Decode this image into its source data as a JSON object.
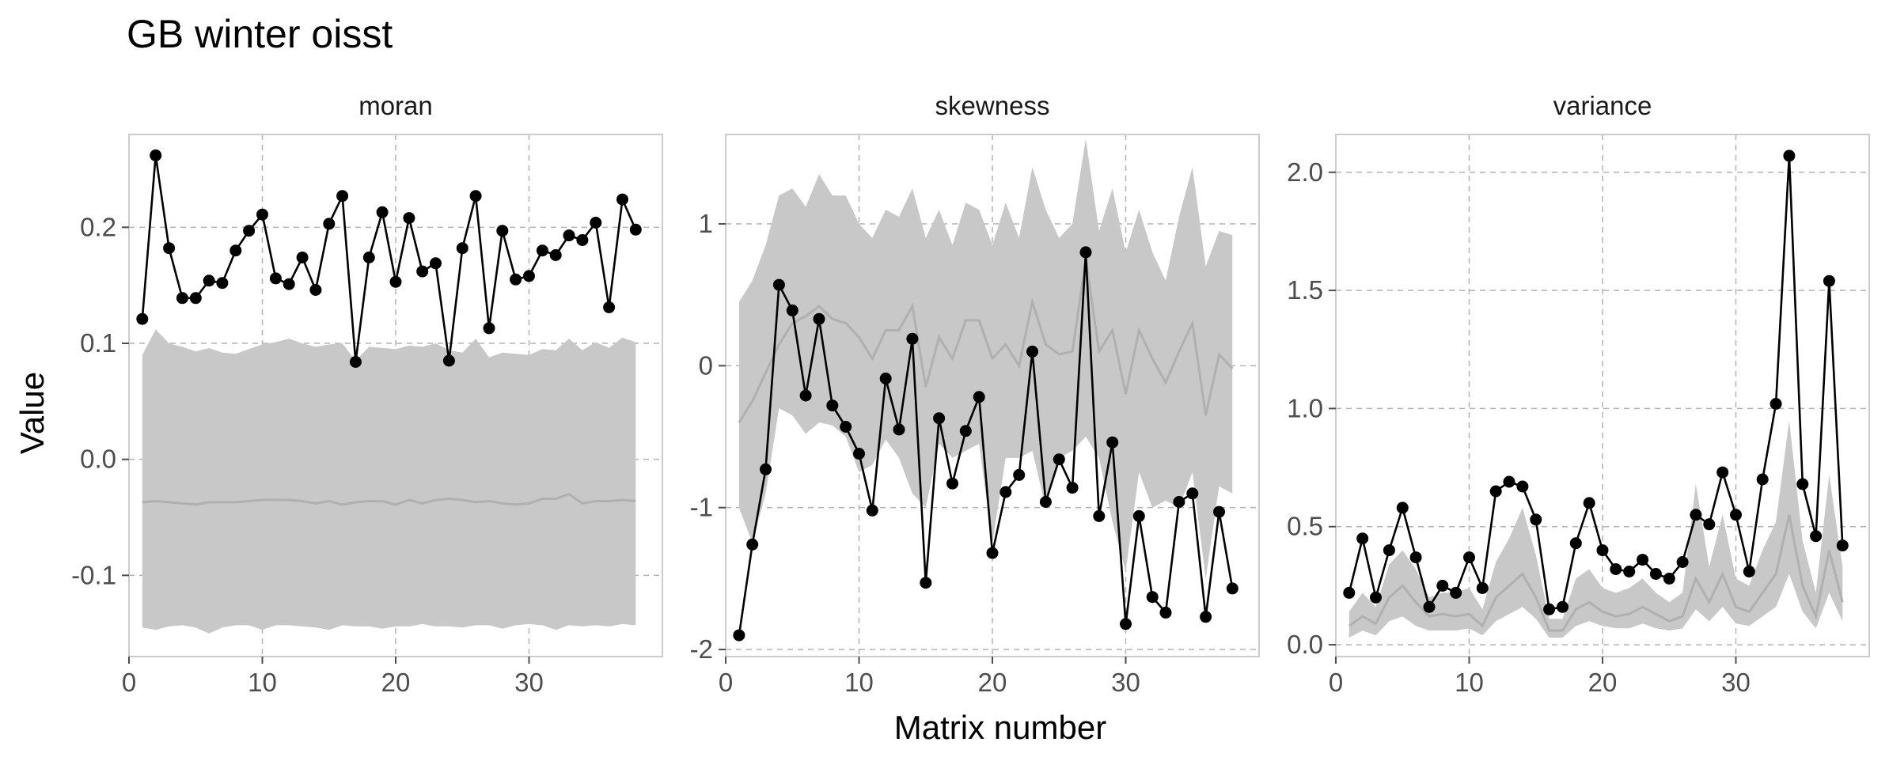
{
  "title": "GB winter oisst",
  "xlabel": "Matrix number",
  "ylabel": "Value",
  "chart_data": [
    {
      "type": "line",
      "panel": "moran",
      "xlim": [
        0,
        40
      ],
      "ylim": [
        -0.17,
        0.28
      ],
      "xticks": [
        0,
        10,
        20,
        30
      ],
      "yticks": [
        -0.1,
        0.0,
        0.1,
        0.2
      ],
      "ytick_labels": [
        "-0.1",
        "0.0",
        "0.1",
        "0.2"
      ],
      "x": [
        1,
        2,
        3,
        4,
        5,
        6,
        7,
        8,
        9,
        10,
        11,
        12,
        13,
        14,
        15,
        16,
        17,
        18,
        19,
        20,
        21,
        22,
        23,
        24,
        25,
        26,
        27,
        28,
        29,
        30,
        31,
        32,
        33,
        34,
        35,
        36,
        37,
        38
      ],
      "observed": [
        0.121,
        0.262,
        0.182,
        0.139,
        0.139,
        0.154,
        0.152,
        0.18,
        0.197,
        0.211,
        0.156,
        0.151,
        0.174,
        0.146,
        0.203,
        0.227,
        0.084,
        0.174,
        0.213,
        0.153,
        0.208,
        0.162,
        0.169,
        0.085,
        0.182,
        0.227,
        0.113,
        0.197,
        0.155,
        0.158,
        0.18,
        0.176,
        0.193,
        0.189,
        0.204,
        0.131,
        0.224,
        0.198
      ],
      "median": [
        -0.037,
        -0.036,
        -0.037,
        -0.038,
        -0.039,
        -0.037,
        -0.037,
        -0.037,
        -0.036,
        -0.035,
        -0.035,
        -0.035,
        -0.036,
        -0.038,
        -0.036,
        -0.039,
        -0.037,
        -0.036,
        -0.036,
        -0.039,
        -0.035,
        -0.038,
        -0.035,
        -0.034,
        -0.035,
        -0.037,
        -0.036,
        -0.038,
        -0.039,
        -0.038,
        -0.034,
        -0.034,
        -0.03,
        -0.038,
        -0.036,
        -0.036,
        -0.035,
        -0.036
      ],
      "lower": [
        -0.145,
        -0.147,
        -0.144,
        -0.143,
        -0.145,
        -0.15,
        -0.145,
        -0.143,
        -0.143,
        -0.147,
        -0.143,
        -0.143,
        -0.144,
        -0.145,
        -0.147,
        -0.143,
        -0.144,
        -0.144,
        -0.146,
        -0.144,
        -0.144,
        -0.142,
        -0.144,
        -0.144,
        -0.145,
        -0.143,
        -0.143,
        -0.146,
        -0.143,
        -0.142,
        -0.143,
        -0.147,
        -0.143,
        -0.144,
        -0.143,
        -0.144,
        -0.142,
        -0.143
      ],
      "upper": [
        0.09,
        0.112,
        0.1,
        0.097,
        0.093,
        0.096,
        0.092,
        0.091,
        0.095,
        0.099,
        0.101,
        0.104,
        0.1,
        0.097,
        0.099,
        0.1,
        0.085,
        0.097,
        0.096,
        0.095,
        0.098,
        0.097,
        0.1,
        0.094,
        0.092,
        0.104,
        0.088,
        0.092,
        0.091,
        0.09,
        0.095,
        0.094,
        0.104,
        0.094,
        0.101,
        0.096,
        0.105,
        0.101
      ]
    },
    {
      "type": "line",
      "panel": "skewness",
      "xlim": [
        0,
        40
      ],
      "ylim": [
        -2.05,
        1.63
      ],
      "xticks": [
        0,
        10,
        20,
        30
      ],
      "yticks": [
        -2,
        -1,
        0,
        1
      ],
      "ytick_labels": [
        "-2",
        "-1",
        "0",
        "1"
      ],
      "x": [
        1,
        2,
        3,
        4,
        5,
        6,
        7,
        8,
        9,
        10,
        11,
        12,
        13,
        14,
        15,
        16,
        17,
        18,
        19,
        20,
        21,
        22,
        23,
        24,
        25,
        26,
        27,
        28,
        29,
        30,
        31,
        32,
        33,
        34,
        35,
        36,
        37,
        38
      ],
      "observed": [
        -1.9,
        -1.26,
        -0.73,
        0.57,
        0.39,
        -0.21,
        0.33,
        -0.28,
        -0.43,
        -0.62,
        -1.02,
        -0.09,
        -0.45,
        0.19,
        -1.53,
        -0.37,
        -0.83,
        -0.46,
        -0.22,
        -1.32,
        -0.89,
        -0.77,
        0.1,
        -0.96,
        -0.66,
        -0.86,
        0.8,
        -1.06,
        -0.54,
        -1.82,
        -1.06,
        -1.63,
        -1.74,
        -0.96,
        -0.9,
        -1.77,
        -1.03,
        -1.57
      ],
      "median": [
        -0.4,
        -0.25,
        -0.05,
        0.15,
        0.3,
        0.35,
        0.42,
        0.33,
        0.3,
        0.2,
        0.05,
        0.25,
        0.25,
        0.42,
        -0.15,
        0.2,
        0.05,
        0.32,
        0.32,
        0.05,
        0.15,
        0.0,
        0.45,
        0.15,
        0.08,
        0.1,
        0.75,
        0.1,
        0.25,
        -0.2,
        0.25,
        0.05,
        -0.12,
        0.1,
        0.3,
        -0.35,
        0.08,
        -0.02
      ],
      "lower": [
        -1.0,
        -1.25,
        -0.9,
        -0.3,
        -0.35,
        -0.48,
        -0.4,
        -0.42,
        -0.5,
        -0.75,
        -0.7,
        -0.52,
        -0.65,
        -0.9,
        -1.0,
        -0.55,
        -0.65,
        -0.6,
        -0.55,
        -1.25,
        -0.65,
        -0.65,
        -0.6,
        -1.0,
        -0.65,
        -0.6,
        -0.5,
        -0.65,
        -1.1,
        -1.45,
        -0.75,
        -1.0,
        -0.95,
        -1.0,
        -0.75,
        -1.5,
        -0.85,
        -0.9
      ],
      "upper": [
        0.45,
        0.6,
        0.85,
        1.2,
        1.25,
        1.12,
        1.35,
        1.2,
        1.2,
        1.0,
        0.9,
        1.1,
        1.05,
        1.25,
        0.9,
        1.1,
        0.85,
        1.15,
        1.1,
        0.85,
        1.15,
        0.9,
        1.4,
        1.1,
        0.9,
        1.0,
        1.6,
        0.95,
        1.25,
        0.8,
        1.1,
        0.8,
        0.6,
        1.05,
        1.4,
        0.7,
        0.95,
        0.92
      ]
    },
    {
      "type": "line",
      "panel": "variance",
      "xlim": [
        0,
        40
      ],
      "ylim": [
        -0.05,
        2.16
      ],
      "xticks": [
        0,
        10,
        20,
        30
      ],
      "yticks": [
        0.0,
        0.5,
        1.0,
        1.5,
        2.0
      ],
      "ytick_labels": [
        "0.0",
        "0.5",
        "1.0",
        "1.5",
        "2.0"
      ],
      "x": [
        1,
        2,
        3,
        4,
        5,
        6,
        7,
        8,
        9,
        10,
        11,
        12,
        13,
        14,
        15,
        16,
        17,
        18,
        19,
        20,
        21,
        22,
        23,
        24,
        25,
        26,
        27,
        28,
        29,
        30,
        31,
        32,
        33,
        34,
        35,
        36,
        37,
        38
      ],
      "observed": [
        0.22,
        0.45,
        0.2,
        0.4,
        0.58,
        0.37,
        0.16,
        0.25,
        0.22,
        0.37,
        0.24,
        0.65,
        0.69,
        0.67,
        0.53,
        0.15,
        0.16,
        0.43,
        0.6,
        0.4,
        0.32,
        0.31,
        0.36,
        0.3,
        0.28,
        0.35,
        0.55,
        0.51,
        0.73,
        0.55,
        0.31,
        0.7,
        1.02,
        2.07,
        0.68,
        0.46,
        1.54,
        0.42
      ],
      "median": [
        0.08,
        0.12,
        0.09,
        0.2,
        0.25,
        0.18,
        0.12,
        0.13,
        0.12,
        0.13,
        0.08,
        0.2,
        0.25,
        0.3,
        0.2,
        0.06,
        0.06,
        0.15,
        0.18,
        0.14,
        0.12,
        0.13,
        0.16,
        0.13,
        0.1,
        0.12,
        0.28,
        0.18,
        0.3,
        0.16,
        0.14,
        0.22,
        0.3,
        0.55,
        0.25,
        0.12,
        0.4,
        0.18
      ],
      "lower": [
        0.03,
        0.06,
        0.04,
        0.1,
        0.12,
        0.08,
        0.06,
        0.06,
        0.06,
        0.07,
        0.04,
        0.1,
        0.13,
        0.16,
        0.11,
        0.03,
        0.03,
        0.08,
        0.1,
        0.08,
        0.07,
        0.07,
        0.09,
        0.07,
        0.06,
        0.07,
        0.15,
        0.1,
        0.16,
        0.09,
        0.08,
        0.12,
        0.16,
        0.3,
        0.14,
        0.07,
        0.22,
        0.1
      ],
      "upper": [
        0.14,
        0.22,
        0.16,
        0.34,
        0.4,
        0.32,
        0.2,
        0.22,
        0.22,
        0.24,
        0.15,
        0.35,
        0.45,
        0.58,
        0.38,
        0.11,
        0.11,
        0.28,
        0.32,
        0.24,
        0.22,
        0.24,
        0.28,
        0.22,
        0.18,
        0.22,
        0.68,
        0.33,
        0.55,
        0.28,
        0.25,
        0.4,
        0.52,
        0.95,
        0.44,
        0.22,
        0.72,
        0.33
      ]
    }
  ]
}
